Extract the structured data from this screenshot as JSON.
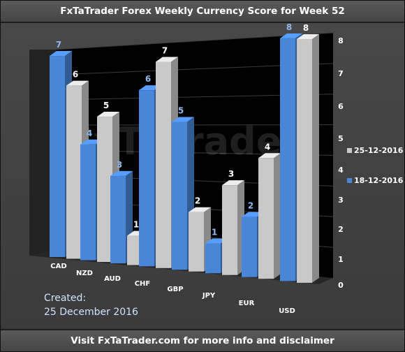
{
  "header": {
    "title": "FxTaTrader Forex Weekly Currency Score for Week 52"
  },
  "footer": {
    "text": "Visit FxTaTrader.com for more info and disclaimer"
  },
  "created": {
    "label": "Created:",
    "date": "25 December 2016"
  },
  "watermark": "FxTaTrader",
  "chart_data": {
    "type": "bar",
    "categories": [
      "CAD",
      "NZD",
      "AUD",
      "CHF",
      "GBP",
      "JPY",
      "EUR",
      "USD"
    ],
    "series": [
      {
        "name": "18-12-2016",
        "values": [
          7,
          4,
          3,
          6,
          5,
          1,
          2,
          8
        ],
        "color": "#4a86d8"
      },
      {
        "name": "25-12-2016",
        "values": [
          6,
          5,
          1,
          7,
          2,
          3,
          4,
          8
        ],
        "color": "#c9c9c9"
      }
    ],
    "y_ticks": [
      0,
      1,
      2,
      3,
      4,
      5,
      6,
      7,
      8
    ],
    "ylim": [
      0,
      8
    ],
    "grid": true,
    "legend_position": "right",
    "three_d": true
  }
}
